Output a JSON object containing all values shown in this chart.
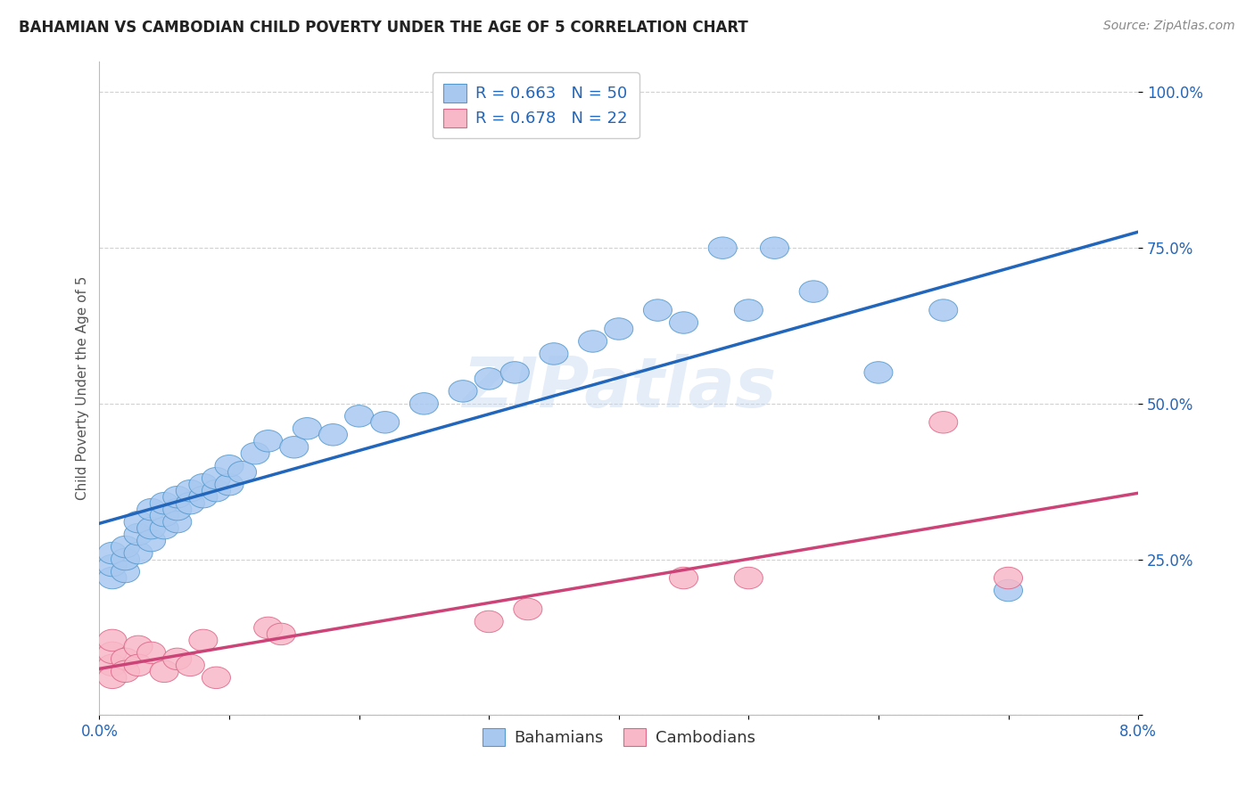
{
  "title": "BAHAMIAN VS CAMBODIAN CHILD POVERTY UNDER THE AGE OF 5 CORRELATION CHART",
  "source": "Source: ZipAtlas.com",
  "ylabel": "Child Poverty Under the Age of 5",
  "watermark": "ZIPatlas",
  "legend_blue_r": "R = 0.663",
  "legend_blue_n": "N = 50",
  "legend_pink_r": "R = 0.678",
  "legend_pink_n": "N = 22",
  "blue_scatter_color": "#a8c8f0",
  "blue_edge_color": "#5599cc",
  "pink_scatter_color": "#f8b8c8",
  "pink_edge_color": "#dd6688",
  "blue_line_color": "#2266bb",
  "pink_line_color": "#cc4477",
  "blue_line_intercept": 20.0,
  "blue_line_slope": 712.5,
  "pink_line_intercept": 5.0,
  "pink_line_slope": 462.5,
  "bahamian_x": [
    0.001,
    0.001,
    0.001,
    0.002,
    0.002,
    0.002,
    0.003,
    0.003,
    0.003,
    0.004,
    0.004,
    0.004,
    0.005,
    0.005,
    0.005,
    0.006,
    0.006,
    0.006,
    0.007,
    0.007,
    0.008,
    0.008,
    0.009,
    0.009,
    0.01,
    0.01,
    0.011,
    0.012,
    0.013,
    0.015,
    0.016,
    0.018,
    0.02,
    0.022,
    0.025,
    0.028,
    0.03,
    0.032,
    0.035,
    0.038,
    0.04,
    0.043,
    0.045,
    0.048,
    0.05,
    0.052,
    0.055,
    0.06,
    0.065,
    0.07
  ],
  "bahamian_y": [
    22.0,
    24.0,
    26.0,
    23.0,
    25.0,
    27.0,
    26.0,
    29.0,
    31.0,
    28.0,
    30.0,
    33.0,
    30.0,
    32.0,
    34.0,
    31.0,
    33.0,
    35.0,
    34.0,
    36.0,
    35.0,
    37.0,
    36.0,
    38.0,
    37.0,
    40.0,
    39.0,
    42.0,
    44.0,
    43.0,
    46.0,
    45.0,
    48.0,
    47.0,
    50.0,
    52.0,
    54.0,
    55.0,
    58.0,
    60.0,
    62.0,
    65.0,
    63.0,
    75.0,
    65.0,
    75.0,
    68.0,
    55.0,
    65.0,
    20.0
  ],
  "cambodian_x": [
    0.001,
    0.001,
    0.001,
    0.001,
    0.002,
    0.002,
    0.003,
    0.003,
    0.004,
    0.005,
    0.006,
    0.007,
    0.008,
    0.009,
    0.013,
    0.014,
    0.03,
    0.033,
    0.045,
    0.05,
    0.065,
    0.07
  ],
  "cambodian_y": [
    8.0,
    10.0,
    12.0,
    6.0,
    9.0,
    7.0,
    11.0,
    8.0,
    10.0,
    7.0,
    9.0,
    8.0,
    12.0,
    6.0,
    14.0,
    13.0,
    15.0,
    17.0,
    22.0,
    22.0,
    47.0,
    22.0
  ],
  "xmin": 0.0,
  "xmax": 0.08,
  "ymin": 0.0,
  "ymax": 105.0
}
